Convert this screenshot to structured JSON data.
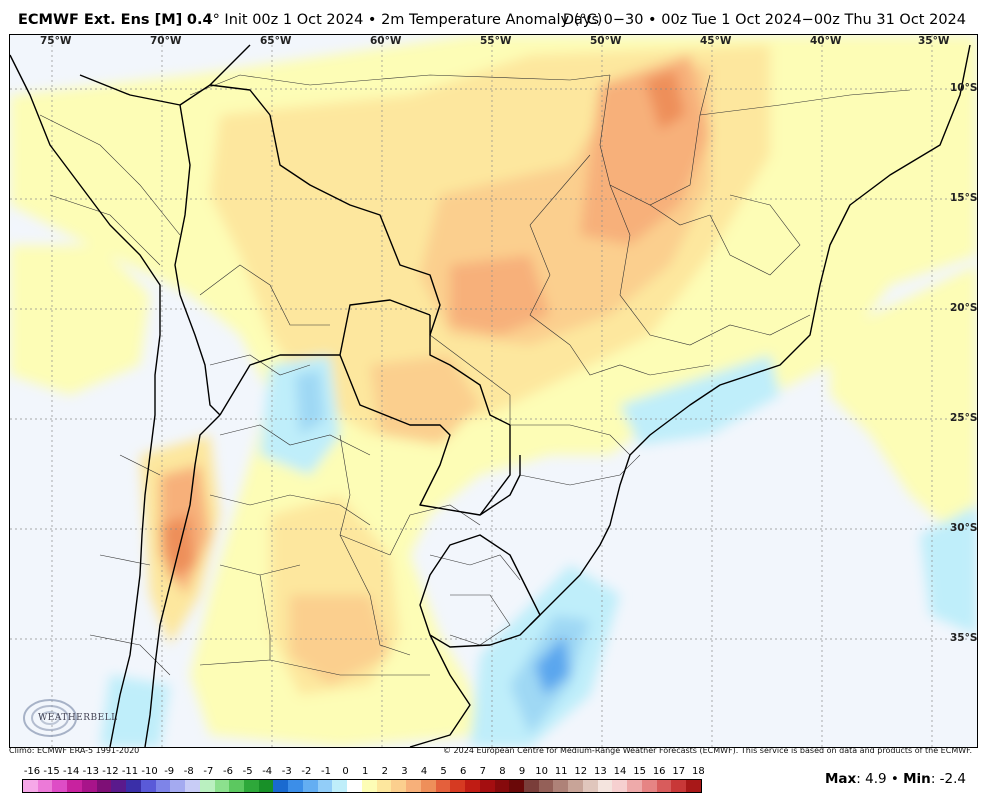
{
  "header": {
    "model": "ECMWF Ext. Ens [M]",
    "resolution": "0.4",
    "init_text": "° Init 00z 1 Oct 2024 • 2m Temperature Anomaly (°C)",
    "period": "Days 0−30 • 00z Tue 1 Oct 2024−00z Thu 31 Oct 2024"
  },
  "map": {
    "lon_labels": [
      "75°W",
      "70°W",
      "65°W",
      "60°W",
      "55°W",
      "50°W",
      "45°W",
      "40°W",
      "35°W"
    ],
    "lat_labels": [
      "10°S",
      "15°S",
      "20°S",
      "25°S",
      "30°S",
      "35°S"
    ],
    "anomaly_colors": {
      "light_blue": "#bfeefa",
      "blue": "#9fd8f4",
      "deep_blue": "#5aa6ee",
      "light_yellow": "#fdfdb6",
      "yellow": "#fde79e",
      "orange_light": "#fbcf8e",
      "orange": "#f7b07a",
      "orange_dark": "#ee8f5a"
    }
  },
  "logo": {
    "text": "WEATHERBELL"
  },
  "footer": {
    "climo": "Climo: ECMWF ERA-5 1991-2020",
    "copyright": "© 2024 European Centre for Medium-Range Weather Forecasts (ECMWF). This service is based on data and products of the ECMWF."
  },
  "colorbar": {
    "labels": [
      "-16",
      "-15",
      "-14",
      "-13",
      "-12",
      "-11",
      "-10",
      "-9",
      "-8",
      "-7",
      "-6",
      "-5",
      "-4",
      "-3",
      "-2",
      "-1",
      "0",
      "1",
      "2",
      "3",
      "4",
      "5",
      "6",
      "7",
      "8",
      "9",
      "10",
      "11",
      "12",
      "13",
      "14",
      "15",
      "16",
      "17",
      "18"
    ],
    "colors": [
      "#f6a8e8",
      "#ec7ad8",
      "#de4cc6",
      "#c8229f",
      "#a8148a",
      "#7e0f76",
      "#5a1a8c",
      "#3a2fa8",
      "#5a5ad8",
      "#7e84e8",
      "#a4aaf0",
      "#c8ccf6",
      "#baf0c0",
      "#8ce08e",
      "#5cc860",
      "#2ea83a",
      "#189028",
      "#1a6ad0",
      "#3c8ee8",
      "#64aef2",
      "#92cdf8",
      "#bfeefa",
      "#ffffff",
      "#fdfdb6",
      "#fde79e",
      "#fbcf8e",
      "#f7b07a",
      "#ee8f5a",
      "#e4603c",
      "#d63a22",
      "#c01c14",
      "#a40e10",
      "#860a0c",
      "#6a0808",
      "#7a3e3a",
      "#946058",
      "#ae8278",
      "#c8a498",
      "#e0c6bc",
      "#f4e4de",
      "#f6d0d0",
      "#eeaaaa",
      "#e68484",
      "#d85c5c",
      "#c83838",
      "#a81818"
    ]
  },
  "stats": {
    "max_label": "Max",
    "max_value": ": 4.9 • ",
    "min_label": "Min",
    "min_value": ": -2.4"
  }
}
